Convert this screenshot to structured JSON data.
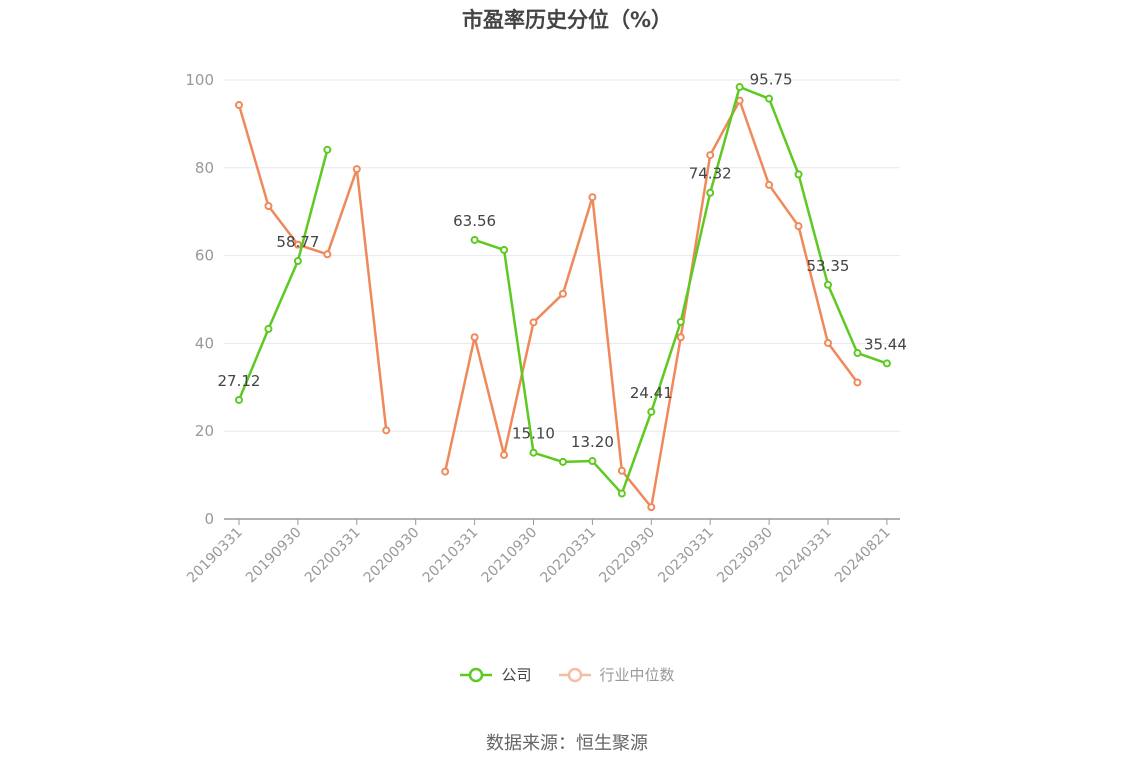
{
  "chart_data": {
    "type": "line",
    "title": "市盈率历史分位（%）",
    "ylim": [
      0,
      100
    ],
    "yticks": [
      0,
      20,
      40,
      60,
      80,
      100
    ],
    "categories": [
      "20190331",
      "20190630",
      "20190930",
      "20191231",
      "20200331",
      "20200630",
      "20200930",
      "20201231",
      "20210331",
      "20210630",
      "20210930",
      "20211231",
      "20220331",
      "20220630",
      "20220930",
      "20221231",
      "20230331",
      "20230630",
      "20230930",
      "20231231",
      "20240331",
      "20240630",
      "20240821"
    ],
    "xtick_labels": [
      "20190331",
      "20190930",
      "20200331",
      "20200930",
      "20210331",
      "20210930",
      "20220331",
      "20220930",
      "20230331",
      "20230930",
      "20240331",
      "20240821"
    ],
    "series": [
      {
        "name": "公司",
        "color": "#5dc921",
        "values": [
          27.12,
          43.3,
          58.77,
          84.1,
          null,
          null,
          null,
          null,
          63.56,
          61.3,
          15.1,
          13.0,
          13.2,
          5.8,
          24.41,
          44.9,
          74.32,
          98.4,
          95.75,
          78.5,
          53.35,
          37.8,
          35.44
        ]
      },
      {
        "name": "行业中位数",
        "color": "#f0895a",
        "values": [
          94.3,
          71.3,
          62.5,
          60.3,
          79.7,
          20.2,
          null,
          10.8,
          41.4,
          14.6,
          44.8,
          51.3,
          73.3,
          11.0,
          2.7,
          41.4,
          82.9,
          95.3,
          76.1,
          66.7,
          40.1,
          31.1,
          null
        ]
      }
    ],
    "annotations": [
      {
        "index": 0,
        "label": "27.12"
      },
      {
        "index": 2,
        "label": "58.77"
      },
      {
        "index": 8,
        "label": "63.56"
      },
      {
        "index": 10,
        "label": "15.10"
      },
      {
        "index": 12,
        "label": "13.20"
      },
      {
        "index": 14,
        "label": "24.41"
      },
      {
        "index": 16,
        "label": "74.32"
      },
      {
        "index": 18,
        "label": "95.75"
      },
      {
        "index": 20,
        "label": "53.35"
      },
      {
        "index": 22,
        "label": "35.44"
      }
    ],
    "grid": true,
    "legend_position": "bottom"
  },
  "legend": {
    "company": "公司",
    "industry": "行业中位数"
  },
  "source": "数据来源：恒生聚源"
}
